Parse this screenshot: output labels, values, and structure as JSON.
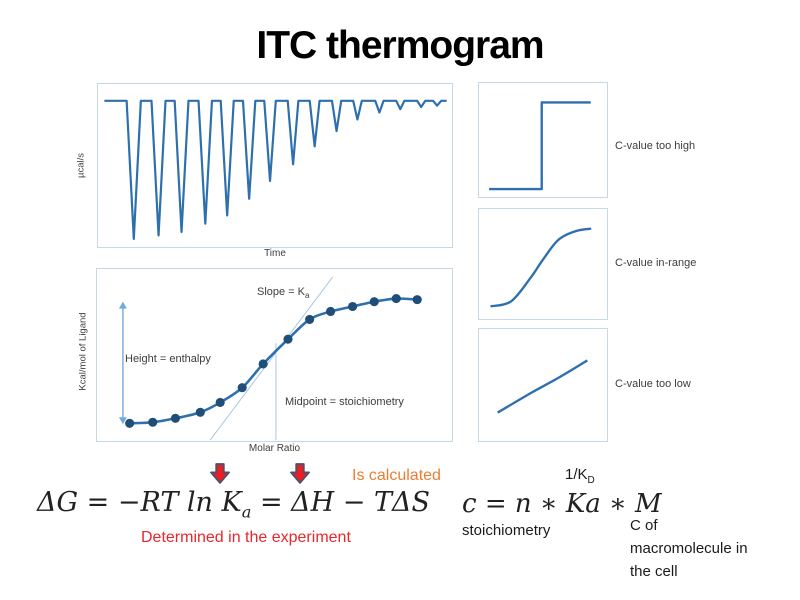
{
  "slide": {
    "title": "ITC thermogram"
  },
  "colors": {
    "curve": "#2e6fad",
    "dot": "#1f4e79",
    "border": "#c5d8e4",
    "guide": "#a9c7e2",
    "height_arrow": "#74a9dc",
    "label": "#3d3d3d",
    "red": "#e8272b",
    "orange": "#ed7d31",
    "arrow_fill": "#ee1d23",
    "arrow_outline": "#44546a",
    "eq": "#212121"
  },
  "chart_data": {
    "thermogram": {
      "type": "line",
      "xlabel": "Time",
      "ylabel": "µcal/s",
      "baseline": 0.103,
      "max_depth": 0.95,
      "spikes": [
        {
          "x": 0.101,
          "d": 1.0
        },
        {
          "x": 0.171,
          "d": 0.975
        },
        {
          "x": 0.236,
          "d": 0.95
        },
        {
          "x": 0.303,
          "d": 0.89
        },
        {
          "x": 0.365,
          "d": 0.83
        },
        {
          "x": 0.427,
          "d": 0.71
        },
        {
          "x": 0.486,
          "d": 0.58
        },
        {
          "x": 0.551,
          "d": 0.46
        },
        {
          "x": 0.612,
          "d": 0.33
        },
        {
          "x": 0.674,
          "d": 0.22
        },
        {
          "x": 0.733,
          "d": 0.135
        },
        {
          "x": 0.795,
          "d": 0.085
        },
        {
          "x": 0.854,
          "d": 0.06
        },
        {
          "x": 0.913,
          "d": 0.045
        },
        {
          "x": 0.958,
          "d": 0.035
        }
      ]
    },
    "isotherm": {
      "type": "scatter",
      "xlabel": "Molar Ratio",
      "ylabel": "Kcal/mol of Ligand",
      "points": [
        [
          0.092,
          0.897
        ],
        [
          0.157,
          0.891
        ],
        [
          0.221,
          0.868
        ],
        [
          0.291,
          0.833
        ],
        [
          0.347,
          0.776
        ],
        [
          0.409,
          0.69
        ],
        [
          0.468,
          0.552
        ],
        [
          0.538,
          0.408
        ],
        [
          0.599,
          0.293
        ],
        [
          0.658,
          0.247
        ],
        [
          0.72,
          0.218
        ],
        [
          0.781,
          0.19
        ],
        [
          0.843,
          0.172
        ],
        [
          0.902,
          0.178
        ]
      ],
      "tangent": [
        [
          0.319,
          0.994
        ],
        [
          0.664,
          0.046
        ]
      ],
      "midline": {
        "x": 0.504,
        "y1": 0.431,
        "y2": 0.994
      },
      "height_arrow": {
        "x": 0.073,
        "y1": 0.19,
        "y2": 0.902
      },
      "annotations": {
        "slope": "Slope = K",
        "slope_sub": "a",
        "height": "Height = enthalpy",
        "midpoint": "Midpoint = stoichiometry"
      }
    },
    "c_high": {
      "type": "line",
      "mode": "poly",
      "label": "C-value too high",
      "points": [
        [
          0.079,
          0.93
        ],
        [
          0.49,
          0.93
        ],
        [
          0.49,
          0.171
        ],
        [
          0.873,
          0.171
        ]
      ]
    },
    "c_range": {
      "type": "line",
      "mode": "smooth",
      "label": "C-value in-range",
      "points": [
        [
          0.09,
          0.885
        ],
        [
          0.25,
          0.84
        ],
        [
          0.4,
          0.63
        ],
        [
          0.5,
          0.46
        ],
        [
          0.62,
          0.28
        ],
        [
          0.76,
          0.2
        ],
        [
          0.877,
          0.179
        ]
      ]
    },
    "c_low": {
      "type": "line",
      "mode": "smooth",
      "label": "C-value too low",
      "points": [
        [
          0.146,
          0.746
        ],
        [
          0.4,
          0.575
        ],
        [
          0.63,
          0.43
        ],
        [
          0.846,
          0.281
        ]
      ]
    }
  },
  "equations": {
    "gibbs": {
      "pre": "ΔG = −RT ln K",
      "sub": "a",
      "post": " = ΔH − TΔS"
    },
    "cvalue": {
      "sup": "1/K",
      "sup_sub": "D",
      "main": "c = n ∗ Ka ∗ M",
      "below_left": "stoichiometry",
      "below_right_lines": [
        "C of",
        "macromolecule in",
        "the cell"
      ]
    }
  },
  "notes": {
    "calculated": "Is calculated",
    "determined": "Determined in the experiment"
  }
}
